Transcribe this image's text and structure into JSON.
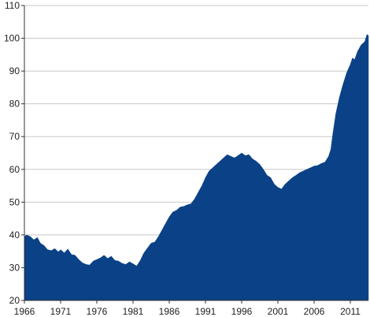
{
  "chart_data": {
    "type": "area",
    "title": "",
    "xlabel": "",
    "ylabel": "",
    "xlim": [
      1966,
      2013.5
    ],
    "ylim": [
      20,
      110
    ],
    "grid": true,
    "legend": "none",
    "y_ticks": [
      20,
      30,
      40,
      50,
      60,
      70,
      80,
      90,
      100,
      110
    ],
    "x_ticks": [
      1966,
      1971,
      1976,
      1981,
      1986,
      1991,
      1996,
      2001,
      2006,
      2011
    ],
    "colors": {
      "fill": "#0b4287",
      "grid": "#c8c8c8",
      "axis": "#333333"
    },
    "series": [
      {
        "x": [
          1966,
          1966.3,
          1966.8,
          1967.3,
          1967.8,
          1968.2,
          1968.7,
          1969.2,
          1969.7,
          1970.2,
          1970.7,
          1971,
          1971.5,
          1972,
          1972.5,
          1973,
          1973.5,
          1974,
          1974.5,
          1975,
          1975.5,
          1976,
          1976.5,
          1977,
          1977.5,
          1978,
          1978.5,
          1979,
          1979.5,
          1980,
          1980.5,
          1981,
          1981.5,
          1982,
          1982.5,
          1983,
          1983.5,
          1984,
          1984.5,
          1985,
          1985.5,
          1986,
          1986.5,
          1987,
          1987.5,
          1988,
          1988.5,
          1989,
          1989.5,
          1990,
          1990.5,
          1991,
          1991.5,
          1992,
          1992.5,
          1993,
          1993.5,
          1994,
          1994.5,
          1995,
          1995.5,
          1996,
          1996.5,
          1997,
          1997.5,
          1998,
          1998.5,
          1999,
          1999.5,
          2000,
          2000.5,
          2001,
          2001.5,
          2002,
          2002.5,
          2003,
          2003.5,
          2004,
          2004.5,
          2005,
          2005.5,
          2006,
          2006.5,
          2007,
          2007.5,
          2008,
          2008.3,
          2008.6,
          2009,
          2009.5,
          2010,
          2010.5,
          2011,
          2011.3,
          2011.6,
          2012,
          2012.5,
          2013,
          2013.3,
          2013.5
        ],
        "values": [
          39.5,
          40,
          39.5,
          38.5,
          39.2,
          37.5,
          36.8,
          35.5,
          35.2,
          35.8,
          34.8,
          35.5,
          34.5,
          35.7,
          34,
          33.8,
          32.5,
          31.5,
          31,
          30.8,
          32,
          32.5,
          33,
          33.8,
          32.8,
          33.5,
          32.2,
          32,
          31.3,
          31,
          31.8,
          31.2,
          30.5,
          32.2,
          34.5,
          36,
          37.5,
          37.8,
          39.5,
          41.5,
          43.5,
          45.5,
          47,
          47.5,
          48.5,
          48.7,
          49.2,
          49.5,
          51,
          53,
          55,
          57.5,
          59.5,
          60.5,
          61.5,
          62.5,
          63.5,
          64.5,
          64,
          63.5,
          64.2,
          65,
          64.2,
          64.5,
          63.2,
          62.5,
          61.5,
          60,
          58.2,
          57.5,
          55.5,
          54.5,
          54,
          55.5,
          56.5,
          57.5,
          58.2,
          59,
          59.5,
          60,
          60.5,
          61,
          61.2,
          61.8,
          62.2,
          64,
          66,
          71,
          77,
          82,
          86,
          89.5,
          92,
          94,
          93.5,
          96,
          98,
          99,
          101.2,
          100.8
        ]
      }
    ]
  }
}
